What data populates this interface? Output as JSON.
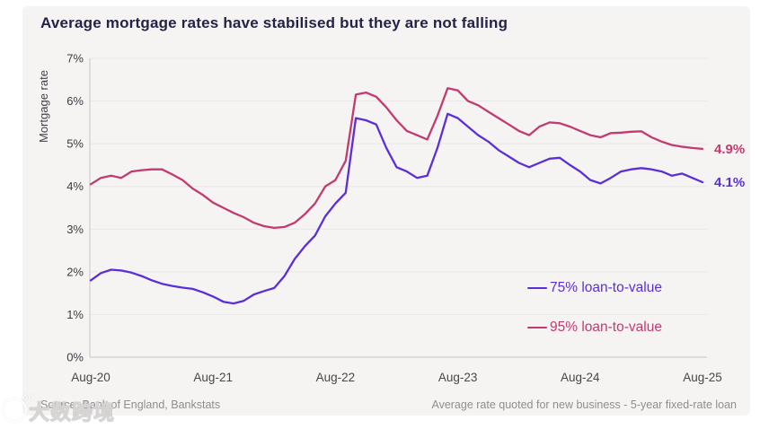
{
  "title": "Average mortgage rates have stabilised but they are not falling",
  "footer": {
    "source": "Source: Bank of England, Bankstats",
    "note": "Average rate quoted for new business - 5-year fixed-rate loan"
  },
  "watermark": {
    "text": "大数跨境"
  },
  "colors": {
    "card_background": "#f6f4f3",
    "title_text": "#232347",
    "grid_line": "#e9e6e6",
    "axis_line": "#cfcccc",
    "y_tick_text": "#3b3b42",
    "x_tick_text": "#474747",
    "footer_text": "#8f8d8d",
    "series_75": "#5b2fd8",
    "series_95": "#c23a6f"
  },
  "chart_data": {
    "type": "line",
    "title": "Average mortgage rates have stabilised but they are not falling",
    "xlabel": "",
    "ylabel": "Mortgage rate",
    "ylim": [
      0,
      7
    ],
    "grid": "horizontal",
    "legend_position": "inside-right",
    "x_unit": "months from Aug-2020",
    "x_tick_months": [
      0,
      12,
      24,
      36,
      48,
      60
    ],
    "x_tick_labels": [
      "Aug-20",
      "Aug-21",
      "Aug-22",
      "Aug-23",
      "Aug-24",
      "Aug-25"
    ],
    "y_tick_labels": [
      "0%",
      "1%",
      "2%",
      "3%",
      "4%",
      "5%",
      "6%",
      "7%"
    ],
    "series": [
      {
        "name": "75% loan-to-value",
        "color": "#5b2fd8",
        "end_label": "4.1%",
        "values": [
          1.8,
          1.97,
          2.05,
          2.03,
          1.98,
          1.9,
          1.8,
          1.72,
          1.67,
          1.63,
          1.6,
          1.52,
          1.42,
          1.3,
          1.26,
          1.32,
          1.47,
          1.55,
          1.62,
          1.9,
          2.3,
          2.6,
          2.85,
          3.3,
          3.6,
          3.85,
          5.6,
          5.55,
          5.45,
          4.9,
          4.45,
          4.35,
          4.2,
          4.25,
          4.9,
          5.7,
          5.6,
          5.4,
          5.2,
          5.05,
          4.85,
          4.7,
          4.55,
          4.45,
          4.55,
          4.65,
          4.67,
          4.5,
          4.35,
          4.15,
          4.07,
          4.2,
          4.35,
          4.4,
          4.43,
          4.4,
          4.35,
          4.25,
          4.3,
          4.2,
          4.1
        ]
      },
      {
        "name": "95% loan-to-value",
        "color": "#c23a6f",
        "end_label": "4.9%",
        "values": [
          4.05,
          4.2,
          4.25,
          4.2,
          4.35,
          4.38,
          4.4,
          4.4,
          4.28,
          4.15,
          3.95,
          3.8,
          3.62,
          3.5,
          3.38,
          3.28,
          3.15,
          3.07,
          3.03,
          3.05,
          3.15,
          3.35,
          3.6,
          4.0,
          4.15,
          4.6,
          6.15,
          6.2,
          6.1,
          5.85,
          5.55,
          5.3,
          5.2,
          5.1,
          5.65,
          6.3,
          6.25,
          6.0,
          5.9,
          5.75,
          5.6,
          5.45,
          5.3,
          5.2,
          5.4,
          5.5,
          5.48,
          5.4,
          5.3,
          5.2,
          5.15,
          5.25,
          5.26,
          5.28,
          5.29,
          5.15,
          5.05,
          4.97,
          4.93,
          4.9,
          4.88
        ]
      }
    ]
  }
}
